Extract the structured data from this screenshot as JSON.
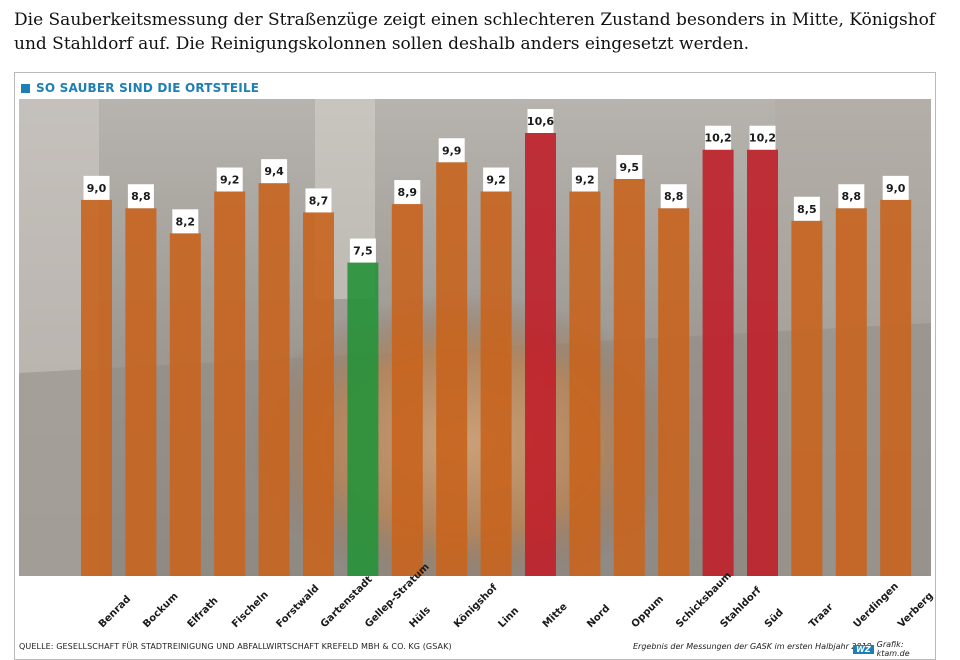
{
  "intro_text": "Die Sauberkeitsmessung der Straßenzüge zeigt einen schlechteren Zustand besonders in Mitte, Königshof und Stahldorf auf. Die Reinigungskolonnen sollen deshalb anders eingesetzt werden.",
  "header": {
    "title": "SO SAUBER SIND DIE ORTSTEILE"
  },
  "footer": {
    "source": "QUELLE: GESELLSCHAFT FÜR STADTREINIGUNG UND ABFALLWIRTSCHAFT KREFELD MBH & CO. KG  (GSAK)",
    "note": "Ergebnis der Messungen der GASK im ersten Halbjahr 2019",
    "wz": "WZ",
    "graphic": "Grafik: ktam.de"
  },
  "colors": {
    "orange": "#c8641e",
    "green": "#26923a",
    "red": "#c0202a",
    "accent": "#1d7fb6"
  },
  "chart_data": {
    "type": "bar",
    "title": "SO SAUBER SIND DIE ORTSTEILE",
    "categories": [
      "Benrad",
      "Bockum",
      "Elfrath",
      "Fischeln",
      "Forstwald",
      "Gartenstadt",
      "Gellep-Stratum",
      "Hüls",
      "Königshof",
      "Linn",
      "Mitte",
      "Nord",
      "Oppum",
      "Schicksbaum",
      "Stahldorf",
      "Süd",
      "Traar",
      "Uerdingen",
      "Verberg"
    ],
    "labels": [
      "9,0",
      "8,8",
      "8,2",
      "9,2",
      "9,4",
      "8,7",
      "7,5",
      "8,9",
      "9,9",
      "9,2",
      "10,6",
      "9,2",
      "9,5",
      "8,8",
      "10,2",
      "10,2",
      "8,5",
      "8,8",
      "9,0"
    ],
    "values": [
      9.0,
      8.8,
      8.2,
      9.2,
      9.4,
      8.7,
      7.5,
      8.9,
      9.9,
      9.2,
      10.6,
      9.2,
      9.5,
      8.8,
      10.2,
      10.2,
      8.5,
      8.8,
      9.0
    ],
    "bar_colors": [
      "orange",
      "orange",
      "orange",
      "orange",
      "orange",
      "orange",
      "green",
      "orange",
      "orange",
      "orange",
      "red",
      "orange",
      "orange",
      "orange",
      "red",
      "red",
      "orange",
      "orange",
      "orange"
    ],
    "ylim": [
      0,
      10.6
    ],
    "grid": false,
    "legend": "none"
  }
}
